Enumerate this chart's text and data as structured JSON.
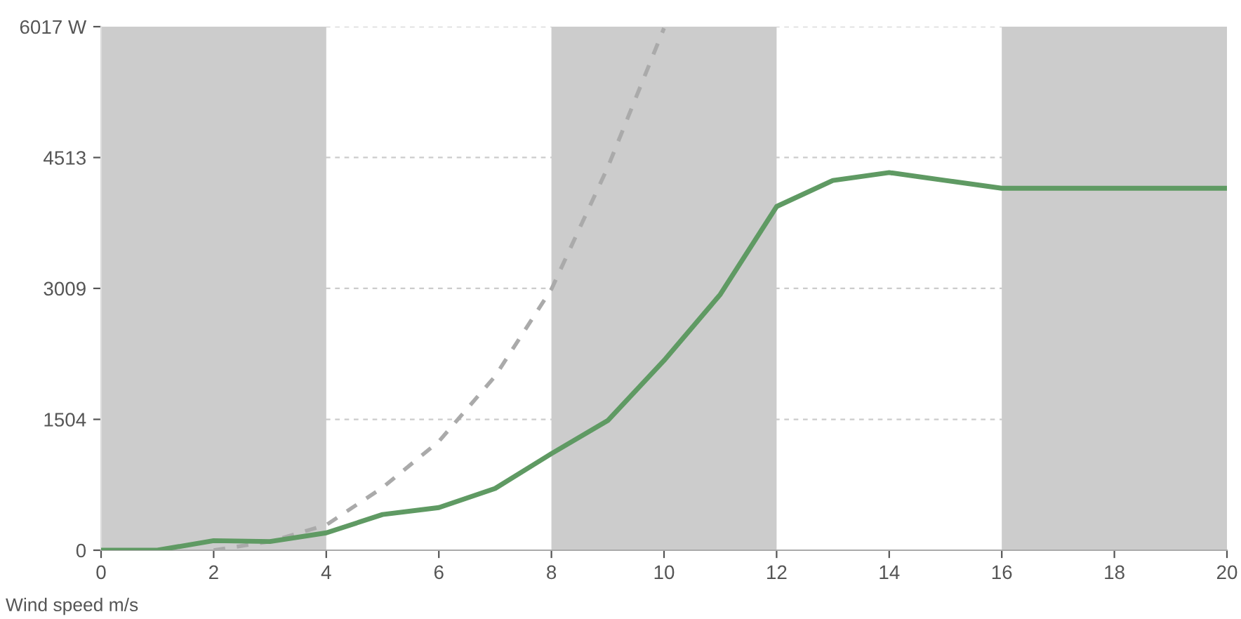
{
  "chart_data": {
    "type": "line",
    "xlabel": "Wind speed m/s",
    "xlim": [
      0,
      20
    ],
    "xticks": [
      0,
      2,
      4,
      6,
      8,
      10,
      12,
      14,
      16,
      18,
      20
    ],
    "ylim": [
      0,
      6017
    ],
    "yticks": [
      0,
      1504,
      3009,
      4513,
      {
        "value": 6017,
        "label": "6017 W"
      }
    ],
    "grid": "y",
    "bands": [
      {
        "axis": "x",
        "from": 0,
        "to": 4,
        "color": "#cccccc"
      },
      {
        "axis": "x",
        "from": 8,
        "to": 12,
        "color": "#cccccc"
      },
      {
        "axis": "x",
        "from": 16,
        "to": 20,
        "color": "#cccccc"
      }
    ],
    "series": [
      {
        "color": "#aaaaaa",
        "line_style": "dashed",
        "x": [
          2,
          3,
          4,
          5,
          6,
          7,
          8,
          9,
          10
        ],
        "values": [
          0,
          100,
          290,
          720,
          1250,
          2000,
          3000,
          4400,
          6000
        ]
      },
      {
        "color": "#5f9a63",
        "line_style": "solid",
        "x": [
          0,
          1,
          2,
          3,
          4,
          5,
          6,
          7,
          8,
          9,
          10,
          11,
          12,
          13,
          14,
          15,
          16,
          17,
          18,
          19,
          20
        ],
        "values": [
          0,
          0,
          110,
          100,
          200,
          410,
          490,
          710,
          1110,
          1490,
          2180,
          2940,
          3950,
          4250,
          4340,
          4250,
          4160,
          4160,
          4160,
          4160,
          4160
        ]
      }
    ]
  }
}
